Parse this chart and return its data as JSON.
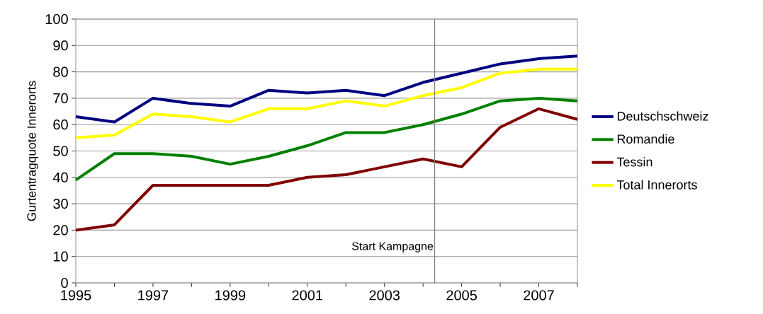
{
  "chart_data": {
    "type": "line",
    "ylabel": "Gurtentragquote Innerorts",
    "x": [
      1995,
      1996,
      1997,
      1998,
      1999,
      2000,
      2001,
      2002,
      2003,
      2004,
      2005,
      2006,
      2007,
      2008
    ],
    "series": [
      {
        "name": "Deutschschweiz",
        "color": "#000080",
        "values": [
          63,
          61,
          70,
          68,
          67,
          73,
          72,
          73,
          71,
          76,
          79.5,
          83,
          85,
          86
        ]
      },
      {
        "name": "Romandie",
        "color": "#008000",
        "values": [
          39,
          49,
          49,
          48,
          45,
          48,
          52,
          57,
          57,
          60,
          64,
          69,
          70,
          69
        ]
      },
      {
        "name": "Tessin",
        "color": "#800000",
        "values": [
          20,
          22,
          37,
          37,
          37,
          37,
          40,
          41,
          44,
          47,
          44,
          59,
          66,
          62
        ]
      },
      {
        "name": "Total Innerorts",
        "color": "#ffff00",
        "values": [
          55,
          56,
          64,
          63,
          61,
          66,
          66,
          69,
          67,
          71,
          74,
          79.5,
          81,
          81
        ]
      }
    ],
    "xlim": [
      1995,
      2008
    ],
    "xticks": [
      1995,
      {
        "value": 1996,
        "label": null
      },
      1997,
      {
        "value": 1998,
        "label": null
      },
      1999,
      {
        "value": 2000,
        "label": null
      },
      2001,
      {
        "value": 2002,
        "label": null
      },
      2003,
      {
        "value": 2004,
        "label": null
      },
      2005,
      {
        "value": 2006,
        "label": null
      },
      2007,
      {
        "value": 2008,
        "label": null
      }
    ],
    "ylim": [
      0,
      100
    ],
    "yticks": [
      0,
      10,
      20,
      30,
      40,
      50,
      60,
      70,
      80,
      90,
      100
    ],
    "ref_lines": [
      {
        "axis": "x",
        "value": 2004.3,
        "label": "Start Kampagne",
        "color": "#808080"
      }
    ],
    "grid": "y",
    "legend": "right",
    "marker": "none",
    "line_style": "solid"
  }
}
